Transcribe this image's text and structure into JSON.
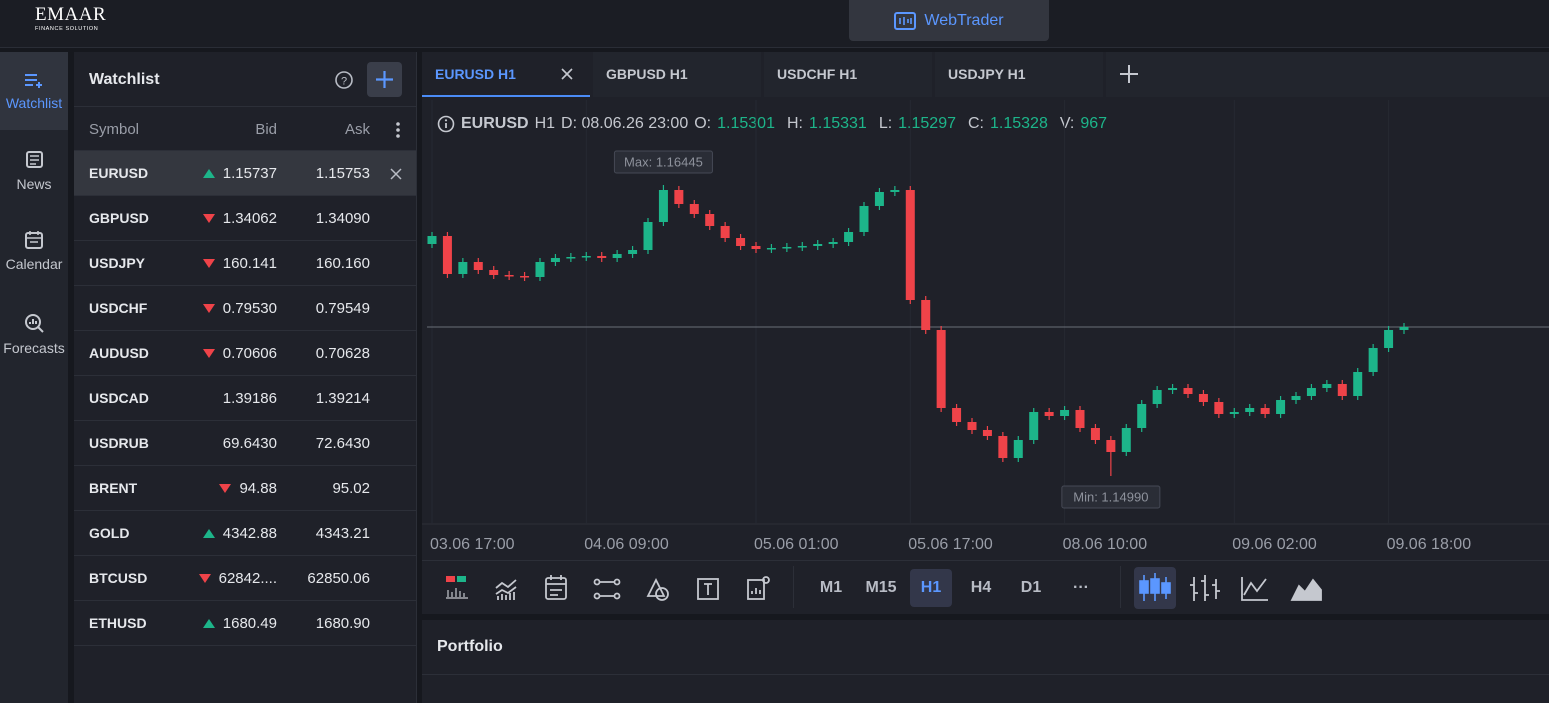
{
  "header": {
    "logo": "EMAAR",
    "logo_sub": "FINANCE SOLUTION",
    "app": "WebTrader"
  },
  "sidebar": [
    "Watchlist",
    "News",
    "Calendar",
    "Forecasts"
  ],
  "watchlist": {
    "title": "Watchlist",
    "columns": [
      "Symbol",
      "Bid",
      "Ask"
    ],
    "rows": [
      {
        "symbol": "EURUSD",
        "trend": "up",
        "bid": "1.15737",
        "ask": "1.15753"
      },
      {
        "symbol": "GBPUSD",
        "trend": "down",
        "bid": "1.34062",
        "ask": "1.34090"
      },
      {
        "symbol": "USDJPY",
        "trend": "down",
        "bid": "160.141",
        "ask": "160.160"
      },
      {
        "symbol": "USDCHF",
        "trend": "down",
        "bid": "0.79530",
        "ask": "0.79549"
      },
      {
        "symbol": "AUDUSD",
        "trend": "down",
        "bid": "0.70606",
        "ask": "0.70628"
      },
      {
        "symbol": "USDCAD",
        "trend": null,
        "bid": "1.39186",
        "ask": "1.39214"
      },
      {
        "symbol": "USDRUB",
        "trend": null,
        "bid": "69.6430",
        "ask": "72.6430"
      },
      {
        "symbol": "BRENT",
        "trend": "down",
        "bid": "94.88",
        "ask": "95.02"
      },
      {
        "symbol": "GOLD",
        "trend": "up",
        "bid": "4342.88",
        "ask": "4343.21"
      },
      {
        "symbol": "BTCUSD",
        "trend": "down",
        "bid": "62842....",
        "ask": "62850.06"
      },
      {
        "symbol": "ETHUSD",
        "trend": "up",
        "bid": "1680.49",
        "ask": "1680.90"
      }
    ]
  },
  "tabs": [
    "EURUSD H1",
    "GBPUSD H1",
    "USDCHF H1",
    "USDJPY H1"
  ],
  "info": {
    "symbol": "EURUSD",
    "timeframe": "H1",
    "date": "D: 08.06.26 23:00",
    "fields": [
      {
        "label": "O:",
        "value": "1.15301"
      },
      {
        "label": "H:",
        "value": "1.15331"
      },
      {
        "label": "L:",
        "value": "1.15297"
      },
      {
        "label": "C:",
        "value": "1.15328"
      },
      {
        "label": "V:",
        "value": "967"
      }
    ]
  },
  "timeframes": [
    "M1",
    "M15",
    "H1",
    "H4",
    "D1",
    "···"
  ],
  "portfolio": "Portfolio",
  "chart_data": {
    "type": "candlestick",
    "up_color": "#1db58a",
    "down_color": "#ef4349",
    "max_label": "Max: 1.16445",
    "min_label": "Min: 1.14990",
    "categories": [
      "03.06 17:00",
      null,
      null,
      null,
      null,
      null,
      null,
      null,
      null,
      null,
      "04.06 09:00",
      null,
      null,
      null,
      null,
      null,
      null,
      null,
      null,
      null,
      null,
      "05.06 01:00",
      null,
      null,
      null,
      null,
      null,
      null,
      null,
      null,
      null,
      "05.06 17:00",
      null,
      null,
      null,
      null,
      null,
      null,
      null,
      null,
      null,
      "08.06 10:00",
      null,
      null,
      null,
      null,
      null,
      null,
      null,
      null,
      null,
      null,
      "09.06 02:00",
      null,
      null,
      null,
      null,
      null,
      null,
      null,
      null,
      null,
      "09.06 18:00",
      null
    ],
    "open": [
      1.1615,
      1.1619,
      1.16,
      1.1606,
      1.1602,
      1.15995,
      1.1599,
      1.15985,
      1.1606,
      1.1608,
      1.16085,
      1.1609,
      1.1608,
      1.161,
      1.1612,
      1.1626,
      1.1642,
      1.1635,
      1.163,
      1.1624,
      1.1618,
      1.1614,
      1.16125,
      1.1613,
      1.16135,
      1.1614,
      1.1615,
      1.1616,
      1.1621,
      1.1634,
      1.1641,
      1.1642,
      1.1587,
      1.1572,
      1.1533,
      1.1526,
      1.1522,
      1.1519,
      1.1508,
      1.1517,
      1.1531,
      1.1529,
      1.1532,
      1.1523,
      1.1517,
      1.1511,
      1.1523,
      1.1535,
      1.1542,
      1.1543,
      1.154,
      1.1536,
      1.153,
      1.1531,
      1.1533,
      1.153,
      1.1537,
      1.1539,
      1.1543,
      1.1545,
      1.1539,
      1.1551,
      1.1563,
      1.1572
    ],
    "high": [
      1.1621,
      1.1621,
      1.1608,
      1.1608,
      1.1604,
      1.16015,
      1.1601,
      1.1608,
      1.161,
      1.16105,
      1.1611,
      1.1611,
      1.1612,
      1.1614,
      1.1628,
      1.16445,
      1.1644,
      1.1637,
      1.1632,
      1.1626,
      1.162,
      1.1616,
      1.1615,
      1.16155,
      1.1616,
      1.1617,
      1.1618,
      1.1623,
      1.1636,
      1.1643,
      1.1644,
      1.1644,
      1.1589,
      1.1574,
      1.1535,
      1.1528,
      1.1524,
      1.1521,
      1.1519,
      1.1533,
      1.1533,
      1.1534,
      1.1534,
      1.1525,
      1.1519,
      1.1525,
      1.1537,
      1.1544,
      1.1545,
      1.1545,
      1.1542,
      1.1538,
      1.1533,
      1.1535,
      1.1535,
      1.1539,
      1.1541,
      1.1545,
      1.1547,
      1.1547,
      1.1553,
      1.1565,
      1.1574,
      1.15755
    ],
    "low": [
      1.1613,
      1.1598,
      1.1598,
      1.16,
      1.15975,
      1.1597,
      1.15965,
      1.15965,
      1.1604,
      1.1606,
      1.16065,
      1.1606,
      1.1606,
      1.1608,
      1.161,
      1.1624,
      1.1633,
      1.1628,
      1.1622,
      1.1616,
      1.1612,
      1.16105,
      1.16105,
      1.1611,
      1.16115,
      1.1612,
      1.1613,
      1.1614,
      1.1619,
      1.1632,
      1.1639,
      1.1585,
      1.157,
      1.1531,
      1.1524,
      1.152,
      1.1517,
      1.1506,
      1.1506,
      1.1515,
      1.1527,
      1.1527,
      1.1521,
      1.1515,
      1.1499,
      1.1509,
      1.1521,
      1.1533,
      1.154,
      1.1538,
      1.1534,
      1.1528,
      1.1528,
      1.1529,
      1.1528,
      1.1528,
      1.1535,
      1.1537,
      1.1541,
      1.1537,
      1.1537,
      1.1549,
      1.1561,
      1.157
    ],
    "close": [
      1.1619,
      1.16,
      1.1606,
      1.1602,
      1.15995,
      1.1599,
      1.15985,
      1.1606,
      1.1608,
      1.16085,
      1.1609,
      1.1608,
      1.161,
      1.1612,
      1.1626,
      1.1642,
      1.1635,
      1.163,
      1.1624,
      1.1618,
      1.1614,
      1.16125,
      1.1613,
      1.16135,
      1.1614,
      1.1615,
      1.1616,
      1.1621,
      1.1634,
      1.1641,
      1.1642,
      1.1587,
      1.1572,
      1.1533,
      1.1526,
      1.1522,
      1.1519,
      1.1508,
      1.1517,
      1.1531,
      1.1529,
      1.1532,
      1.1523,
      1.1517,
      1.1511,
      1.1523,
      1.1535,
      1.1542,
      1.1543,
      1.154,
      1.1536,
      1.153,
      1.1531,
      1.1533,
      1.153,
      1.1537,
      1.1539,
      1.1543,
      1.1545,
      1.1539,
      1.1551,
      1.1563,
      1.1572,
      1.15735
    ]
  }
}
